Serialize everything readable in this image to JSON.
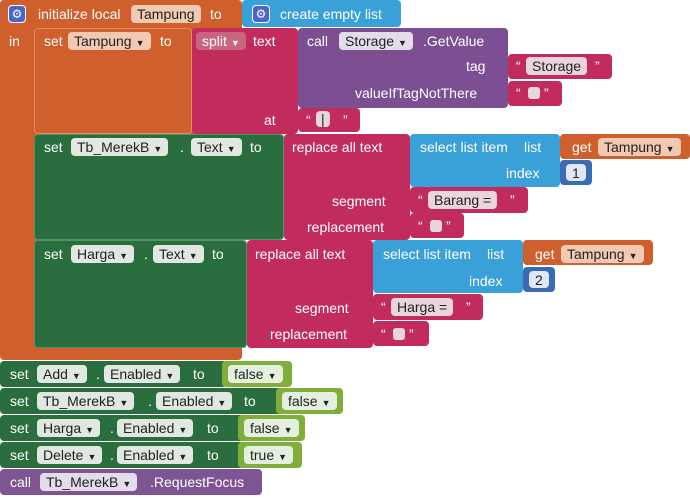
{
  "init": {
    "keyword": "initialize local",
    "var": "Tampung",
    "to": "to",
    "in": "in",
    "create": "create empty list"
  },
  "set_kw": "set",
  "to_kw": "to",
  "dot": ".",
  "quote_open": "“",
  "quote_close": "”",
  "split": {
    "set": "set",
    "var": "Tampung",
    "to": "to",
    "label": "split",
    "text": "text",
    "at": "at",
    "at_value": "|"
  },
  "call_storage": {
    "call": "call",
    "component": "Storage",
    "method": ".GetValue",
    "tag": "tag",
    "tag_value": "Storage",
    "valueIf": "valueIfTagNotThere"
  },
  "set1": {
    "component": "Tb_MerekB",
    "prop": "Text",
    "replace": "replace all text",
    "select": "select list item",
    "list": "list",
    "get": "get",
    "getvar": "Tampung",
    "index": "index",
    "index_value": "1",
    "segment": "segment",
    "segment_value": "Barang = ",
    "replacement": "replacement"
  },
  "set2": {
    "component": "Harga",
    "prop": "Text",
    "replace": "replace all text",
    "select": "select list item",
    "list": "list",
    "get": "get",
    "getvar": "Tampung",
    "index": "index",
    "index_value": "2",
    "segment": "segment",
    "segment_value": "Harga = ",
    "replacement": "replacement"
  },
  "enabled_rows": [
    {
      "component": "Add",
      "prop": "Enabled",
      "value": "false"
    },
    {
      "component": "Tb_MerekB",
      "prop": "Enabled",
      "value": "false"
    },
    {
      "component": "Harga",
      "prop": "Enabled",
      "value": "false"
    },
    {
      "component": "Delete",
      "prop": "Enabled",
      "value": "true"
    }
  ],
  "call_focus": {
    "call": "call",
    "component": "Tb_MerekB",
    "method": ".RequestFocus"
  },
  "icons": {
    "gear": "gear-icon",
    "dropdown": "dropdown-arrow-icon"
  },
  "colors": {
    "orange": "#d05f2e",
    "magenta": "#c12c5c",
    "purple": "#7b4f91",
    "green": "#2a6e3f",
    "lightgreen": "#7fae3b",
    "blue": "#3aa0d8",
    "math": "#3a6bb5"
  }
}
